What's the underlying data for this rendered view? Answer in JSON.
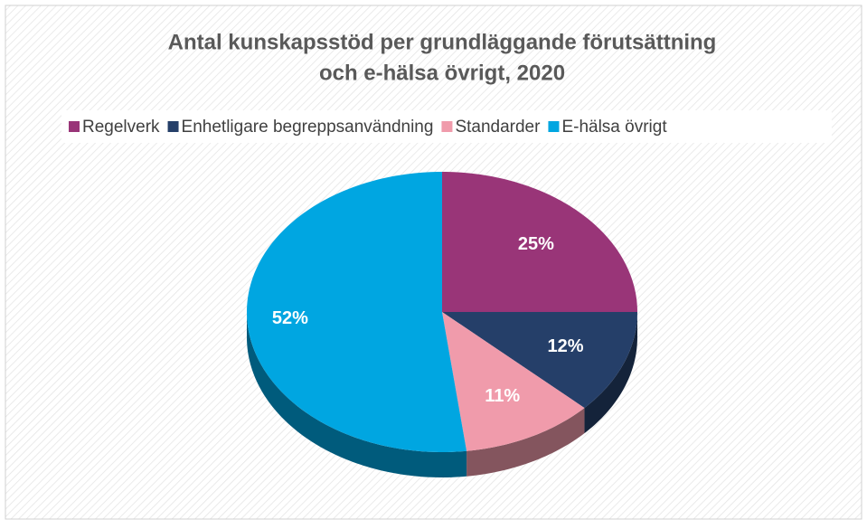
{
  "chart_data": {
    "type": "pie",
    "title": [
      "Antal kunskapsstöd per grundläggande förutsättning",
      "och e-hälsa övrigt, 2020"
    ],
    "categories": [
      "Regelverk",
      "Enhetligare begreppsanvändning",
      "Standarder",
      "E-hälsa övrigt"
    ],
    "values": [
      25,
      12,
      11,
      52
    ],
    "value_labels": [
      "25%",
      "12%",
      "11%",
      "52%"
    ],
    "colors": [
      "#993578",
      "#253f69",
      "#f09bab",
      "#00a6e1"
    ],
    "legend": "top"
  }
}
